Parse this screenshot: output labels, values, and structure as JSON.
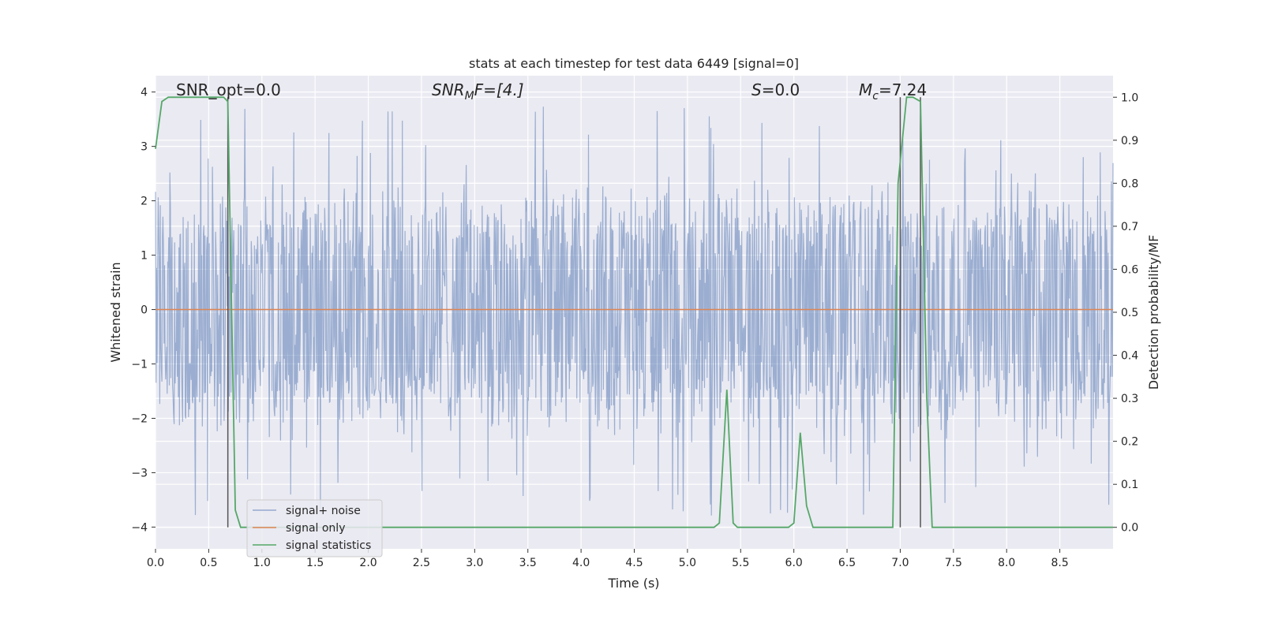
{
  "chart_data": {
    "type": "line",
    "title": "stats at each timestep for test data 6449 [signal=0]",
    "xlabel": "Time (s)",
    "ylabel_left": "Whitened strain",
    "ylabel_right": "Detection probability/MF",
    "xlim": [
      0.0,
      9.0
    ],
    "ylim_left": [
      -4.4,
      4.3
    ],
    "ylim_right": [
      -0.05,
      1.05
    ],
    "x_ticks": [
      "0.0",
      "0.5",
      "1.0",
      "1.5",
      "2.0",
      "2.5",
      "3.0",
      "3.5",
      "4.0",
      "4.5",
      "5.0",
      "5.5",
      "6.0",
      "6.5",
      "7.0",
      "7.5",
      "8.0",
      "8.5"
    ],
    "y_left_ticks": [
      "4",
      "3",
      "2",
      "1",
      "0",
      "−1",
      "−2",
      "−3",
      "−4"
    ],
    "y_right_ticks": [
      "1.0",
      "0.9",
      "0.8",
      "0.7",
      "0.6",
      "0.5",
      "0.4",
      "0.3",
      "0.2",
      "0.1",
      "0.0"
    ],
    "grid": true,
    "legend_position": "lower-left",
    "colors": {
      "noise": "#4c72b0",
      "signal": "#dd8452",
      "statistics": "#55a868",
      "vlines": "#555555",
      "background": "#eaeaf2"
    },
    "annotations": {
      "snr_opt": "SNR_opt=0.0",
      "snr_mf_base": "SNR",
      "snr_mf_sub": "M",
      "snr_mf_rest": "F=[4.]",
      "s_italic": "S",
      "s_rest": "=0.0",
      "mc_italic": "M",
      "mc_sub": "c",
      "mc_rest": "=7.24"
    },
    "vertical_lines_x": [
      0.68,
      7.0,
      7.19
    ],
    "series": [
      {
        "name": "signal+ noise",
        "axis": "left",
        "description_envelope": {
          "typical_upper": [
            1.5,
            2.5
          ],
          "typical_lower": [
            -1.5,
            -2.5
          ],
          "spike_max": 3.8,
          "spike_min": -4.0
        }
      },
      {
        "name": "signal only",
        "axis": "left",
        "x": [
          0.0,
          9.0
        ],
        "y": [
          0.0,
          0.0
        ]
      },
      {
        "name": "signal statistics",
        "axis": "right",
        "x": [
          0.0,
          0.06,
          0.12,
          0.2,
          0.3,
          0.4,
          0.5,
          0.6,
          0.64,
          0.68,
          0.75,
          0.8,
          0.9,
          1.0,
          1.5,
          2.0,
          3.0,
          4.0,
          5.0,
          5.25,
          5.3,
          5.37,
          5.43,
          5.47,
          5.5,
          5.8,
          5.95,
          6.0,
          6.06,
          6.12,
          6.18,
          6.25,
          6.5,
          6.93,
          6.98,
          7.06,
          7.12,
          7.19,
          7.25,
          7.3,
          7.5,
          8.0,
          8.5,
          9.0
        ],
        "y": [
          0.88,
          0.99,
          1.0,
          1.0,
          1.0,
          1.0,
          1.0,
          1.0,
          1.0,
          0.99,
          0.04,
          0.0,
          0.0,
          0.0,
          0.0,
          0.0,
          0.0,
          0.0,
          0.0,
          0.0,
          0.01,
          0.32,
          0.01,
          0.0,
          0.0,
          0.0,
          0.0,
          0.01,
          0.22,
          0.05,
          0.0,
          0.0,
          0.0,
          0.0,
          0.8,
          1.0,
          1.0,
          0.99,
          0.3,
          0.0,
          0.0,
          0.0,
          0.0,
          0.0
        ]
      }
    ]
  }
}
